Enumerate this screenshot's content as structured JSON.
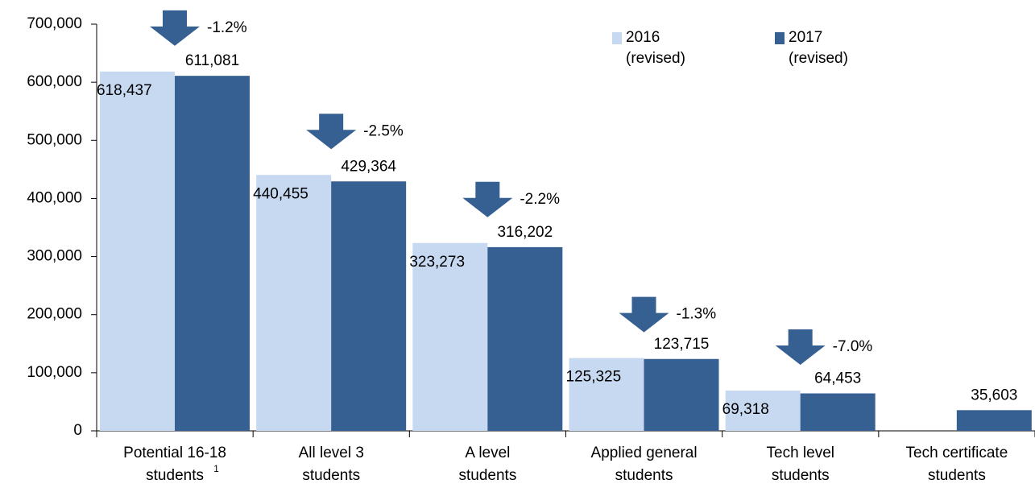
{
  "chart_data": {
    "type": "bar",
    "categories": [
      [
        "Potential 16-18",
        "students"
      ],
      [
        "All level 3",
        "students"
      ],
      [
        "A level",
        "students"
      ],
      [
        "Applied general",
        "students"
      ],
      [
        "Tech level",
        "students"
      ],
      [
        "Tech certificate",
        "students"
      ]
    ],
    "footnote_marker": "1",
    "series": [
      {
        "name": "2016 (revised)",
        "color": "#c6d9f1",
        "values": [
          618437,
          440455,
          323273,
          125325,
          69318,
          null
        ],
        "value_labels": [
          "618,437",
          "440,455",
          "323,273",
          "125,325",
          "69,318",
          null
        ]
      },
      {
        "name": "2017 (revised)",
        "color": "#376092",
        "values": [
          611081,
          429364,
          316202,
          123715,
          64453,
          35603
        ],
        "value_labels": [
          "611,081",
          "429,364",
          "316,202",
          "123,715",
          "64,453",
          "35,603"
        ]
      }
    ],
    "change_labels": [
      "-1.2%",
      "-2.5%",
      "-2.2%",
      "-1.3%",
      "-7.0%"
    ],
    "ylim": [
      0,
      700000
    ],
    "yticks": [
      {
        "value": 0,
        "label": "0"
      },
      {
        "value": 100000,
        "label": "100,000"
      },
      {
        "value": 200000,
        "label": "200,000"
      },
      {
        "value": 300000,
        "label": "300,000"
      },
      {
        "value": 400000,
        "label": "400,000"
      },
      {
        "value": 500000,
        "label": "500,000"
      },
      {
        "value": 600000,
        "label": "600,000"
      },
      {
        "value": 700000,
        "label": "700,000"
      }
    ],
    "grid": false
  }
}
